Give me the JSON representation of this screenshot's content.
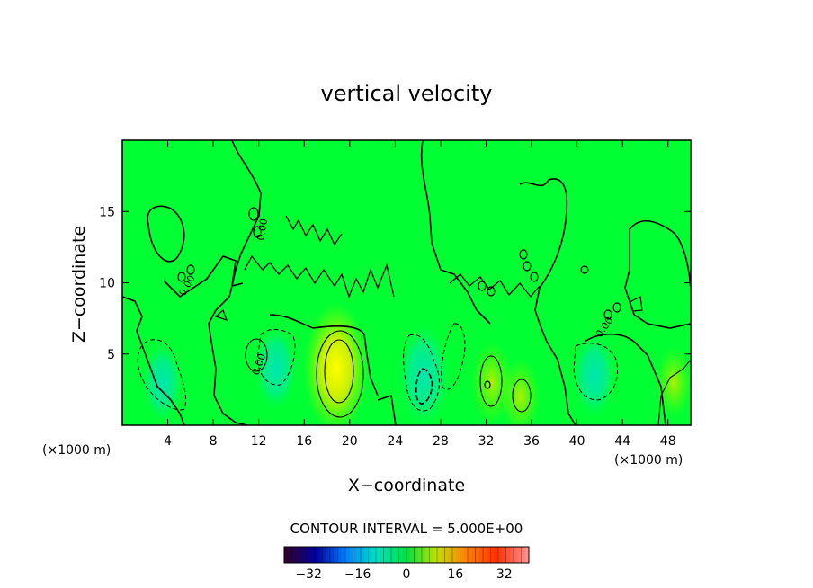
{
  "chart_data": {
    "type": "heatmap",
    "title": "vertical velocity",
    "xlabel": "X−coordinate",
    "ylabel": "Z−coordinate",
    "x_unit_label": "(×1000 m)",
    "x_unit_label_right": "(×1000 m)",
    "xlim": [
      0,
      50
    ],
    "ylim": [
      0,
      20
    ],
    "x_ticks": [
      "4",
      "8",
      "12",
      "16",
      "20",
      "24",
      "28",
      "32",
      "36",
      "40",
      "44",
      "48"
    ],
    "x_tick_values": [
      4,
      8,
      12,
      16,
      20,
      24,
      28,
      32,
      36,
      40,
      44,
      48
    ],
    "y_ticks": [
      "5",
      "10",
      "15"
    ],
    "y_tick_values": [
      5,
      10,
      15
    ],
    "contour_interval_text": "CONTOUR INTERVAL = 5.000E+00",
    "contour_label": "0.00",
    "colorbar": {
      "range": [
        -40,
        40
      ],
      "ticks": [
        "−32",
        "−16",
        "0",
        "16",
        "32"
      ],
      "tick_values": [
        -32,
        -16,
        0,
        16,
        32
      ],
      "colormap": "rainbow",
      "colors": [
        "#300030",
        "#0000a0",
        "#0080ff",
        "#00e0c0",
        "#00e040",
        "#c0e000",
        "#ff8000",
        "#ff3000",
        "#ff9090"
      ]
    },
    "background_color": "#00ff33",
    "features": [
      {
        "kind": "downdraft",
        "x": 3.5,
        "z": 3,
        "value": -6
      },
      {
        "kind": "downdraft",
        "x": 13.5,
        "z": 4,
        "value": -7
      },
      {
        "kind": "updraft",
        "x": 18.8,
        "z": 4,
        "value": 14
      },
      {
        "kind": "downdraft",
        "x": 26.5,
        "z": 3.5,
        "value": -10
      },
      {
        "kind": "updraft",
        "x": 32.5,
        "z": 3,
        "value": 6
      },
      {
        "kind": "updraft",
        "x": 35,
        "z": 2,
        "value": 5
      },
      {
        "kind": "downdraft",
        "x": 41.5,
        "z": 3.5,
        "value": -7
      },
      {
        "kind": "updraft",
        "x": 48.5,
        "z": 3,
        "value": 4
      }
    ]
  }
}
